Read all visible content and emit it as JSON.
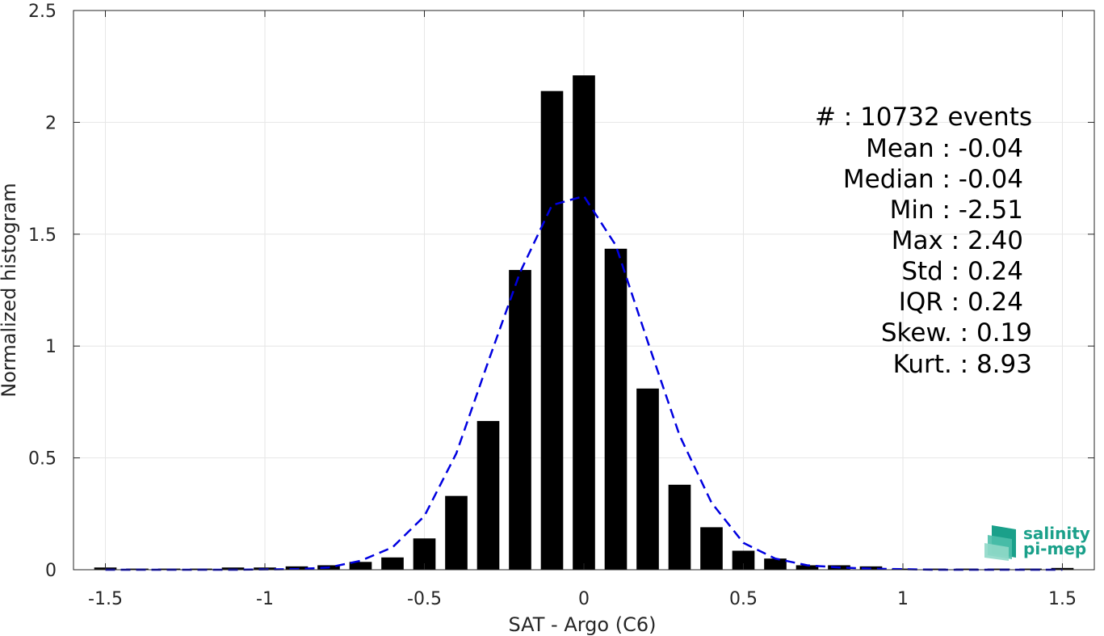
{
  "chart_data": {
    "type": "bar",
    "xlabel": "SAT - Argo (C6)",
    "ylabel": "Normalized histogram",
    "xlim": [
      -1.6,
      1.6
    ],
    "ylim": [
      0,
      2.5
    ],
    "grid": true,
    "x_ticks": [
      -1.5,
      -1,
      -0.5,
      0,
      0.5,
      1,
      1.5
    ],
    "x_tick_labels": [
      "-1.5",
      "-1",
      "-0.5",
      "0",
      "0.5",
      "1",
      "1.5"
    ],
    "y_ticks": [
      0,
      0.5,
      1,
      1.5,
      2,
      2.5
    ],
    "y_tick_labels": [
      "0",
      "0.5",
      "1",
      "1.5",
      "2",
      "2.5"
    ],
    "bar_color": "#000000",
    "bar_width": 0.07,
    "bars": [
      {
        "x": -1.5,
        "y": 0.01
      },
      {
        "x": -1.4,
        "y": 0.005
      },
      {
        "x": -1.3,
        "y": 0.005
      },
      {
        "x": -1.2,
        "y": 0.005
      },
      {
        "x": -1.1,
        "y": 0.01
      },
      {
        "x": -1.0,
        "y": 0.01
      },
      {
        "x": -0.9,
        "y": 0.015
      },
      {
        "x": -0.8,
        "y": 0.02
      },
      {
        "x": -0.7,
        "y": 0.035
      },
      {
        "x": -0.6,
        "y": 0.055
      },
      {
        "x": -0.5,
        "y": 0.14
      },
      {
        "x": -0.4,
        "y": 0.33
      },
      {
        "x": -0.3,
        "y": 0.665
      },
      {
        "x": -0.2,
        "y": 1.34
      },
      {
        "x": -0.1,
        "y": 2.14
      },
      {
        "x": 0.0,
        "y": 2.21
      },
      {
        "x": 0.1,
        "y": 1.435
      },
      {
        "x": 0.2,
        "y": 0.81
      },
      {
        "x": 0.3,
        "y": 0.38
      },
      {
        "x": 0.4,
        "y": 0.19
      },
      {
        "x": 0.5,
        "y": 0.085
      },
      {
        "x": 0.6,
        "y": 0.05
      },
      {
        "x": 0.7,
        "y": 0.02
      },
      {
        "x": 0.8,
        "y": 0.02
      },
      {
        "x": 0.9,
        "y": 0.015
      },
      {
        "x": 1.0,
        "y": 0.005
      },
      {
        "x": 1.1,
        "y": 0.005
      },
      {
        "x": 1.2,
        "y": 0.005
      },
      {
        "x": 1.3,
        "y": 0.005
      },
      {
        "x": 1.4,
        "y": 0.005
      },
      {
        "x": 1.5,
        "y": 0.008
      }
    ],
    "fit_curve": {
      "style": "dashed",
      "color": "#0000e0",
      "points": [
        [
          -1.5,
          0.0
        ],
        [
          -1.3,
          0.0
        ],
        [
          -1.1,
          0.0
        ],
        [
          -0.9,
          0.003
        ],
        [
          -0.8,
          0.01
        ],
        [
          -0.7,
          0.04
        ],
        [
          -0.6,
          0.1
        ],
        [
          -0.5,
          0.24
        ],
        [
          -0.4,
          0.52
        ],
        [
          -0.3,
          0.93
        ],
        [
          -0.2,
          1.33
        ],
        [
          -0.1,
          1.63
        ],
        [
          0.0,
          1.67
        ],
        [
          0.1,
          1.45
        ],
        [
          0.2,
          1.02
        ],
        [
          0.3,
          0.6
        ],
        [
          0.4,
          0.3
        ],
        [
          0.5,
          0.12
        ],
        [
          0.6,
          0.05
        ],
        [
          0.7,
          0.02
        ],
        [
          0.8,
          0.01
        ],
        [
          0.9,
          0.005
        ],
        [
          1.1,
          0.0
        ],
        [
          1.3,
          0.0
        ],
        [
          1.5,
          0.0
        ]
      ]
    }
  },
  "stats": [
    {
      "label": "#  : 10732 events"
    },
    {
      "label": "Mean : -0.04"
    },
    {
      "label": "Median : -0.04"
    },
    {
      "label": "Min : -2.51"
    },
    {
      "label": "Max : 2.40"
    },
    {
      "label": "Std : 0.24"
    },
    {
      "label": "IQR : 0.24"
    },
    {
      "label": "Skew. : 0.19"
    },
    {
      "label": "Kurt. : 8.93"
    }
  ],
  "logo": {
    "line1": "salinity",
    "line2": "pi-mep",
    "color": "#1aa08a"
  }
}
